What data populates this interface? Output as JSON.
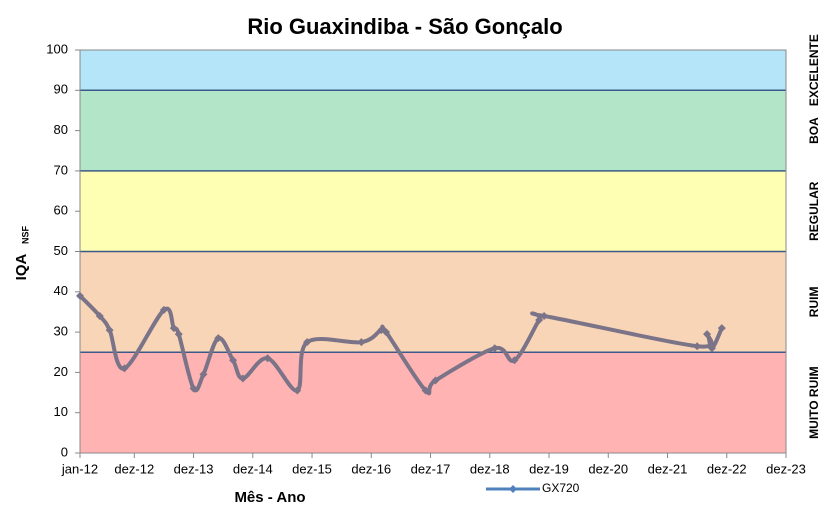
{
  "chart_data": {
    "type": "line",
    "title": "Rio Guaxindiba - São Gonçalo",
    "x_label": "Mês - Ano",
    "y_label": "IQA",
    "y_label_sub": "NSF",
    "ylim": [
      0,
      100
    ],
    "yticks": [
      0,
      10,
      20,
      30,
      40,
      50,
      60,
      70,
      80,
      90,
      100
    ],
    "xlim": [
      "2012-01",
      "2023-12"
    ],
    "xticks": [
      {
        "value": "2012-01",
        "label": "jan-12"
      },
      {
        "value": "2012-12",
        "label": "dez-12"
      },
      {
        "value": "2013-12",
        "label": "dez-13"
      },
      {
        "value": "2014-12",
        "label": "dez-14"
      },
      {
        "value": "2015-12",
        "label": "dez-15"
      },
      {
        "value": "2016-12",
        "label": "dez-16"
      },
      {
        "value": "2017-12",
        "label": "dez-17"
      },
      {
        "value": "2018-12",
        "label": "dez-18"
      },
      {
        "value": "2019-12",
        "label": "dez-19"
      },
      {
        "value": "2020-12",
        "label": "dez-20"
      },
      {
        "value": "2021-12",
        "label": "dez-21"
      },
      {
        "value": "2022-12",
        "label": "dez-22"
      },
      {
        "value": "2023-12",
        "label": "dez-23"
      }
    ],
    "bands": [
      {
        "label": "MUITO RUIM",
        "from": 0,
        "to": 25,
        "color": "#ffb3b3"
      },
      {
        "label": "RUIM",
        "from": 25,
        "to": 50,
        "color": "#f8d5b6"
      },
      {
        "label": "REGULAR",
        "from": 50,
        "to": 70,
        "color": "#ffffb3"
      },
      {
        "label": "BOA",
        "from": 70,
        "to": 90,
        "color": "#b3e6c8"
      },
      {
        "label": "EXCELENTE",
        "from": 90,
        "to": 100,
        "color": "#b5e5f8"
      }
    ],
    "x": [
      "2012-01",
      "2012-05",
      "2012-07",
      "2012-10",
      "2013-06",
      "2013-08",
      "2013-09",
      "2013-12",
      "2014-02",
      "2014-05",
      "2014-08",
      "2014-10",
      "2015-03",
      "2015-09",
      "2015-11",
      "2016-10",
      "2017-02",
      "2017-03",
      "2017-11",
      "2018-01",
      "2019-01",
      "2019-05",
      "2019-10",
      "2019-11",
      "2022-06",
      "2022-08",
      "2022-09",
      "2022-11"
    ],
    "series": [
      {
        "name": "GX720",
        "color": "#7b7488",
        "values": [
          39,
          34,
          30.5,
          21,
          35.5,
          31,
          29.5,
          16,
          19.5,
          28.5,
          23,
          18.5,
          23.5,
          15.5,
          27.5,
          27.5,
          30.5,
          30,
          15.5,
          18,
          26,
          23,
          33,
          34,
          26.5,
          29.5,
          26,
          31
        ]
      }
    ],
    "legend": "bottom"
  }
}
